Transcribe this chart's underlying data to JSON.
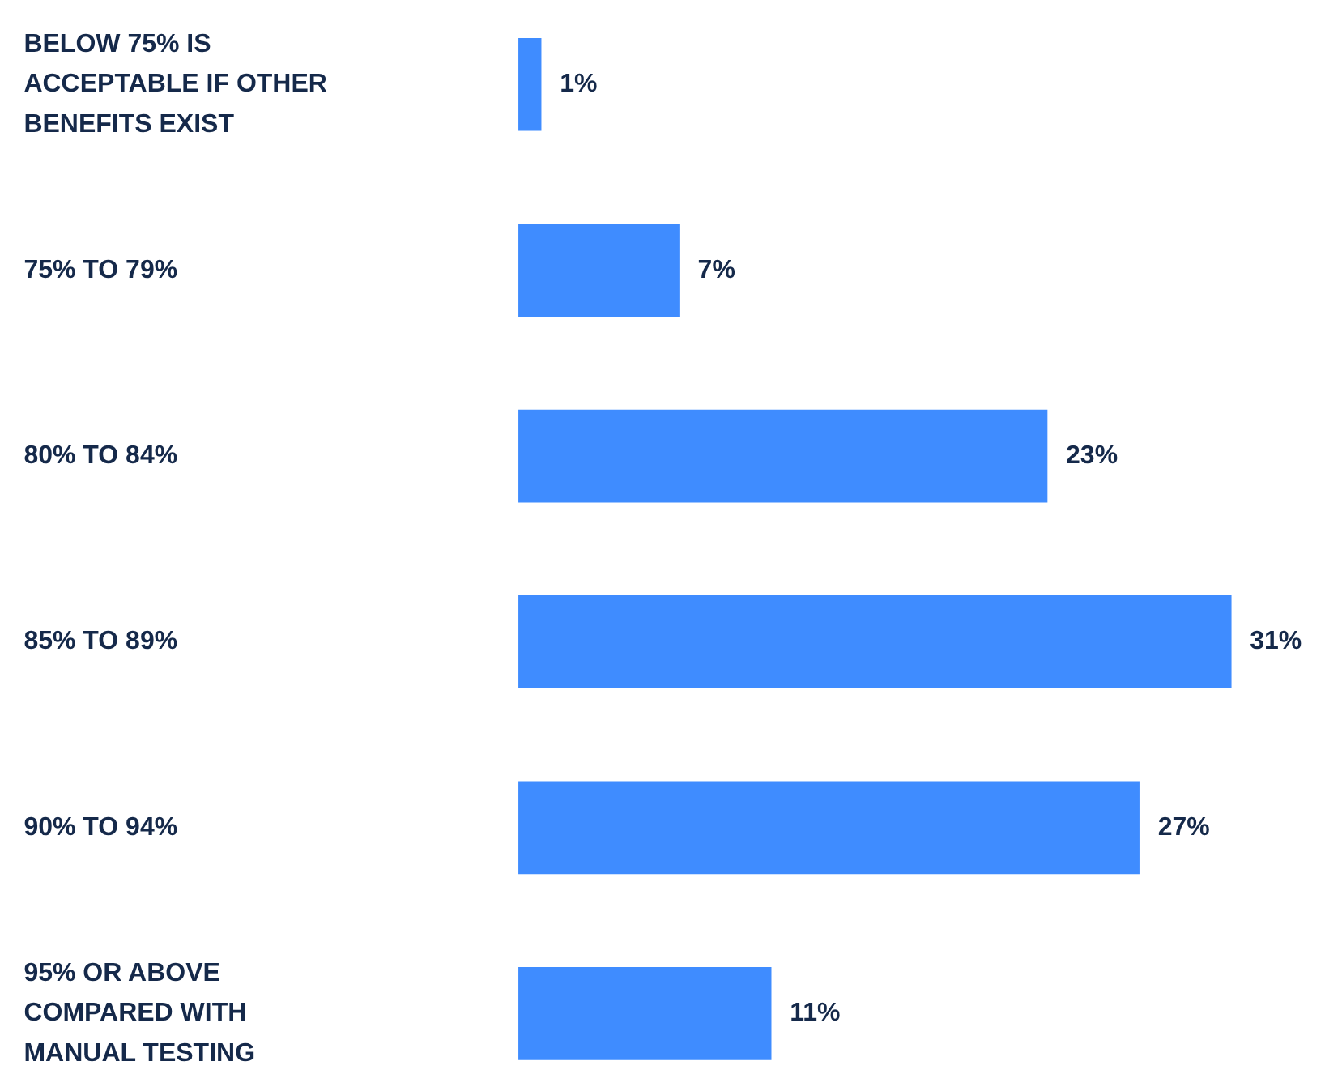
{
  "chart_data": {
    "type": "bar",
    "orientation": "horizontal",
    "categories": [
      "BELOW 75% IS\nACCEPTABLE IF OTHER\nBENEFITS EXIST",
      "75% TO 79%",
      "80% TO 84%",
      "85% TO 89%",
      "90% TO 94%",
      "95% OR ABOVE\nCOMPARED WITH\nMANUAL TESTING"
    ],
    "values": [
      1,
      7,
      23,
      31,
      27,
      11
    ],
    "value_labels": [
      "1%",
      "7%",
      "23%",
      "31%",
      "27%",
      "11%"
    ],
    "color": "#3f8cff"
  }
}
